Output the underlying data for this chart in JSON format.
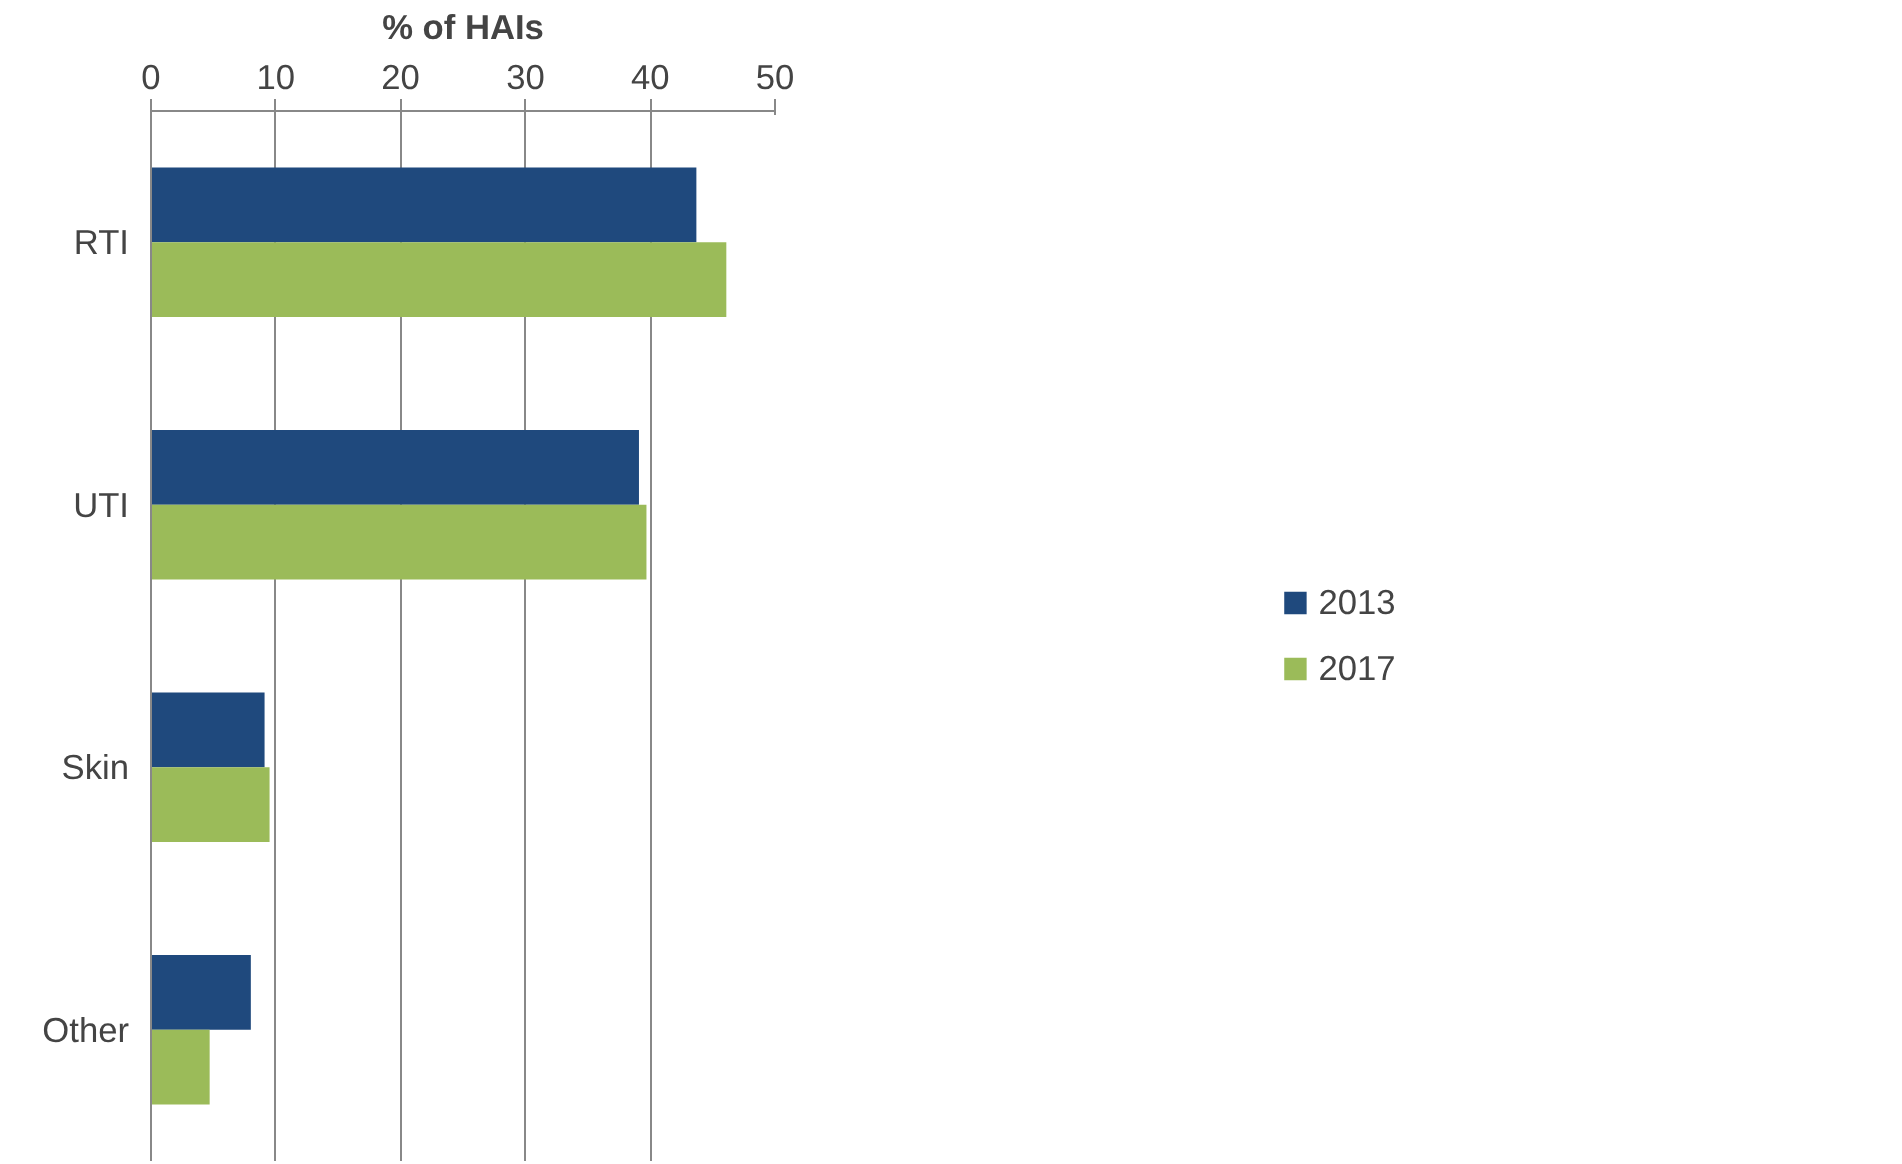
{
  "chart_data": {
    "type": "bar",
    "orientation": "horizontal",
    "xlabel": "% of HAIs",
    "categories": [
      "RTI",
      "UTI",
      "Skin",
      "Other"
    ],
    "series": [
      {
        "name": "2013",
        "color": "#1f497d",
        "values": [
          43.7,
          39.1,
          9.1,
          8.0
        ]
      },
      {
        "name": "2017",
        "color": "#9bbb59",
        "values": [
          46.1,
          39.7,
          9.5,
          4.7
        ]
      }
    ],
    "xlim": [
      0,
      50
    ],
    "xticks": [
      0,
      10,
      20,
      30,
      40,
      50
    ],
    "grid": "x",
    "legend": "right"
  }
}
